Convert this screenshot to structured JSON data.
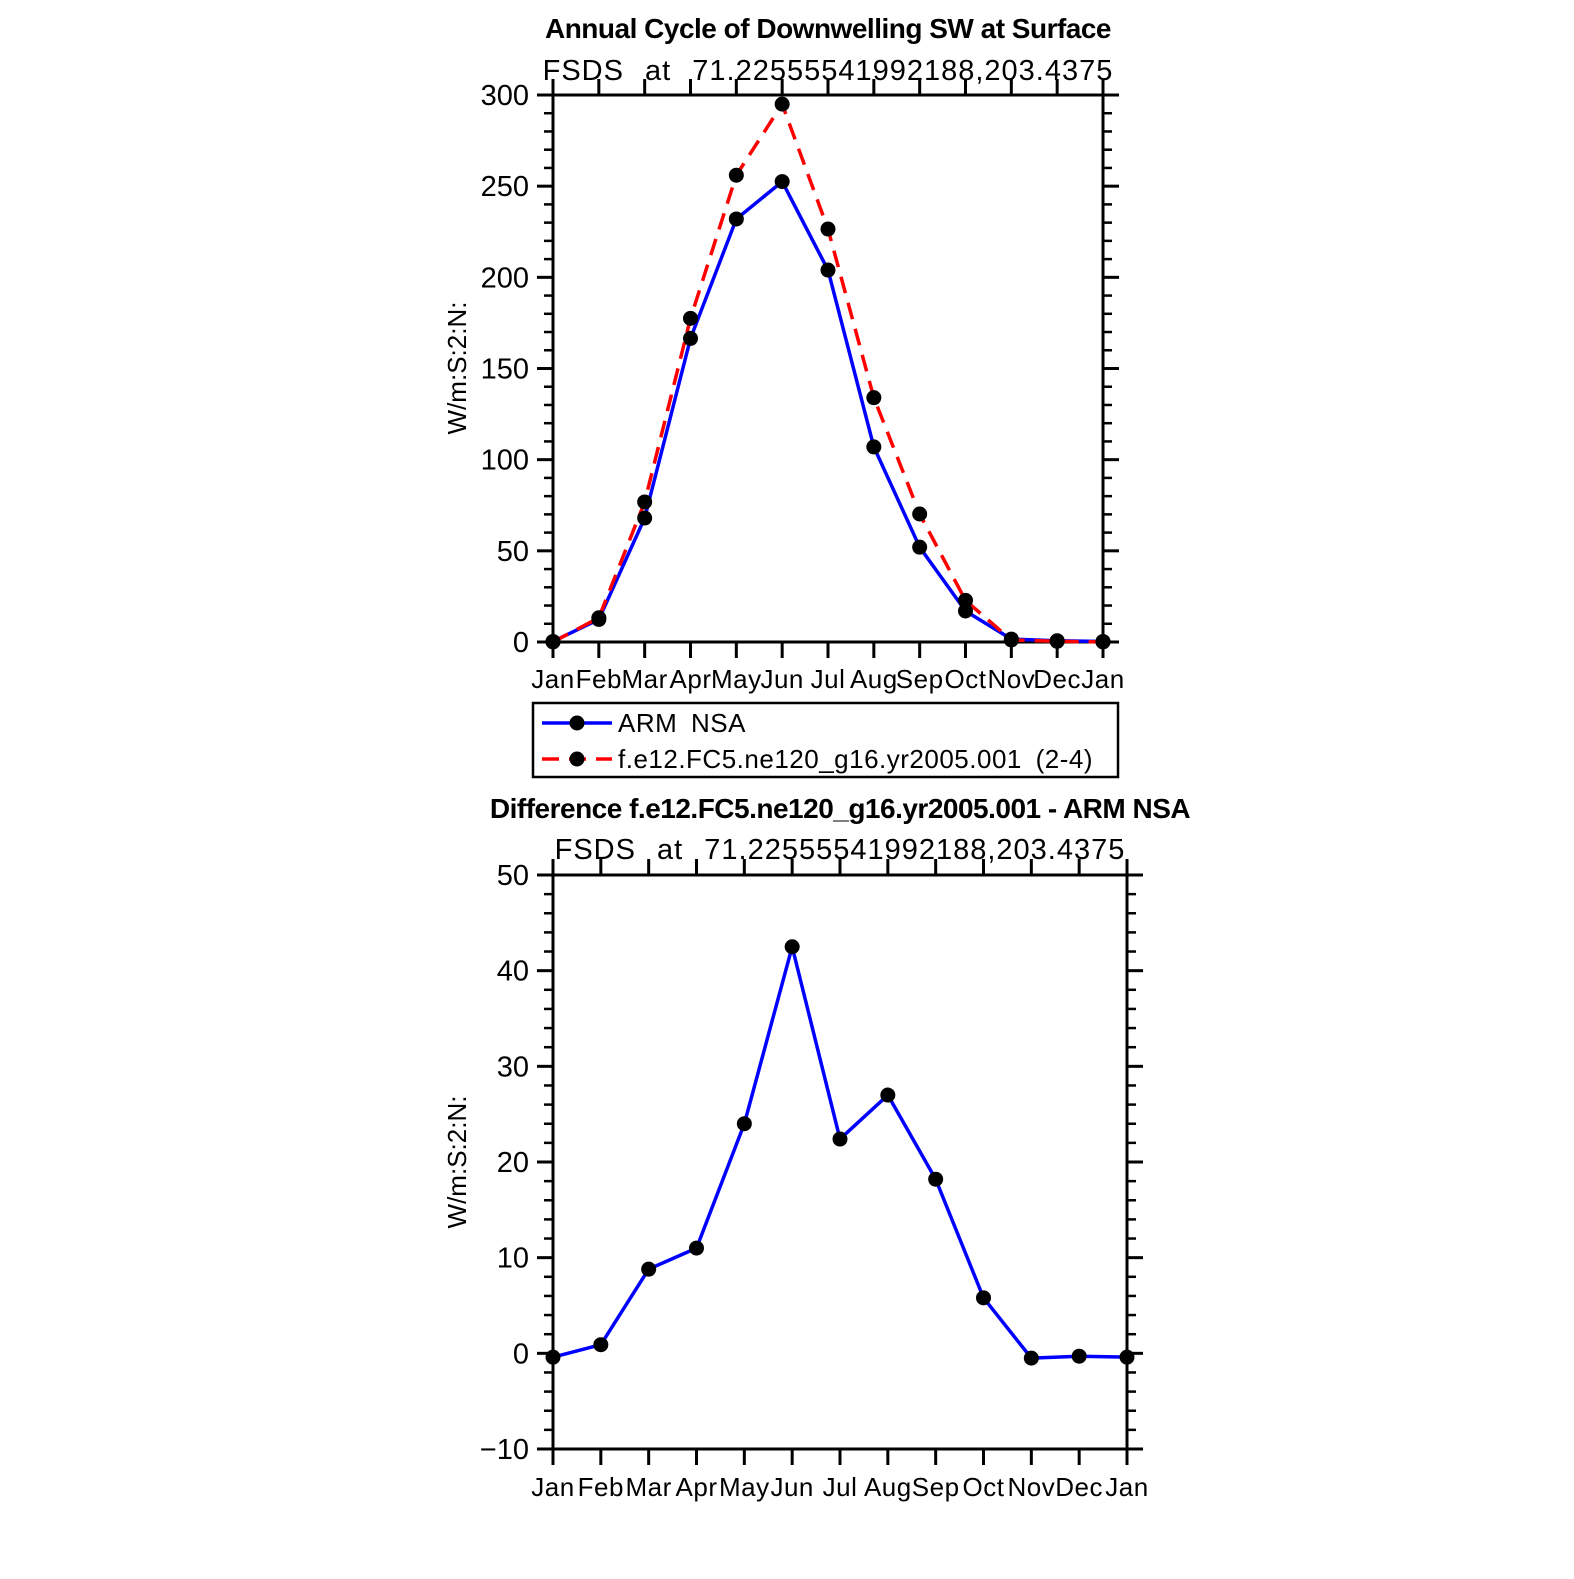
{
  "page": {
    "background": "#ffffff",
    "axis_color": "#000000",
    "marker_color": "#000000",
    "marker_shape": "filled-circle"
  },
  "chart_data": [
    {
      "type": "line",
      "title": "Annual Cycle of Downwelling SW at Surface",
      "subtitle": "FSDS at 71.22555541992188,203.4375",
      "xlabel": "",
      "ylabel": "W/m:S:2:N:",
      "categories": [
        "Jan",
        "Feb",
        "Mar",
        "Apr",
        "May",
        "Jun",
        "Jul",
        "Aug",
        "Sep",
        "Oct",
        "Nov",
        "Dec",
        "Jan"
      ],
      "ylim": [
        0,
        300
      ],
      "ytick_major": 50,
      "ytick_minor": 10,
      "grid": false,
      "legend_position": "below-chart-boxed",
      "series": [
        {
          "name": "ARM NSA",
          "color": "#0000ff",
          "line_style": "solid",
          "marker": "filled-circle",
          "values": [
            0.3,
            12.4,
            68.0,
            166.5,
            232.0,
            252.5,
            204.0,
            107.0,
            52.0,
            17.0,
            1.6,
            0.7,
            0.3
          ]
        },
        {
          "name": "f.e12.FC5.ne120_g16.yr2005.001 (2-4)",
          "color": "#ff0000",
          "line_style": "dashed",
          "marker": "filled-circle",
          "values": [
            0.0,
            13.3,
            76.8,
            177.5,
            256.0,
            295.0,
            226.5,
            134.0,
            70.2,
            22.8,
            1.1,
            0.4,
            0.0
          ]
        }
      ]
    },
    {
      "type": "line",
      "title": "Difference f.e12.FC5.ne120_g16.yr2005.001 - ARM NSA",
      "subtitle": "FSDS at 71.22555541992188,203.4375",
      "xlabel": "",
      "ylabel": "W/m:S:2:N:",
      "categories": [
        "Jan",
        "Feb",
        "Mar",
        "Apr",
        "May",
        "Jun",
        "Jul",
        "Aug",
        "Sep",
        "Oct",
        "Nov",
        "Dec",
        "Jan"
      ],
      "ylim": [
        -10,
        50
      ],
      "ytick_major": 10,
      "ytick_minor": 2,
      "grid": false,
      "legend_position": "none",
      "series": [
        {
          "name": "f.e12.FC5.ne120_g16.yr2005.001 - ARM NSA",
          "color": "#0000ff",
          "line_style": "solid",
          "marker": "filled-circle",
          "values": [
            -0.4,
            0.9,
            8.8,
            11.0,
            24.0,
            42.5,
            22.4,
            27.0,
            18.2,
            5.8,
            -0.5,
            -0.3,
            -0.4
          ]
        }
      ]
    }
  ],
  "legend": {
    "items": [
      {
        "label": "ARM NSA",
        "color": "#0000ff",
        "line_style": "solid"
      },
      {
        "label": "f.e12.FC5.ne120_g16.yr2005.001 (2-4)",
        "color": "#ff0000",
        "line_style": "dashed"
      }
    ]
  }
}
